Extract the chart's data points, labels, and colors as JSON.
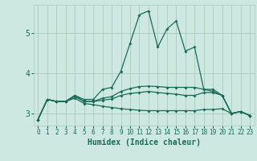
{
  "xlabel": "Humidex (Indice chaleur)",
  "background_color": "#cce8e0",
  "grid_color": "#aaccbb",
  "line_color": "#1a6b58",
  "xlim": [
    -0.5,
    23.5
  ],
  "ylim": [
    2.7,
    5.7
  ],
  "yticks": [
    3,
    4,
    5
  ],
  "xticks": [
    0,
    1,
    2,
    3,
    4,
    5,
    6,
    7,
    8,
    9,
    10,
    11,
    12,
    13,
    14,
    15,
    16,
    17,
    18,
    19,
    20,
    21,
    22,
    23
  ],
  "lines": [
    {
      "x": [
        0,
        1,
        2,
        3,
        4,
        5,
        6,
        7,
        8,
        9,
        10,
        11,
        12,
        13,
        14,
        15,
        16,
        17,
        18,
        19,
        20,
        21,
        22,
        23
      ],
      "y": [
        2.85,
        3.35,
        3.3,
        3.3,
        3.45,
        3.35,
        3.35,
        3.6,
        3.65,
        4.05,
        4.75,
        5.45,
        5.55,
        4.65,
        5.1,
        5.3,
        4.55,
        4.65,
        3.6,
        3.6,
        3.45,
        3.0,
        3.05,
        2.95
      ]
    },
    {
      "x": [
        0,
        1,
        2,
        3,
        4,
        5,
        6,
        7,
        8,
        9,
        10,
        11,
        12,
        13,
        14,
        15,
        16,
        17,
        18,
        19,
        20,
        21,
        22,
        23
      ],
      "y": [
        2.85,
        3.35,
        3.3,
        3.3,
        3.45,
        3.3,
        3.3,
        3.38,
        3.42,
        3.55,
        3.62,
        3.67,
        3.68,
        3.67,
        3.65,
        3.65,
        3.65,
        3.65,
        3.6,
        3.55,
        3.45,
        3.0,
        3.05,
        2.95
      ]
    },
    {
      "x": [
        0,
        1,
        2,
        3,
        4,
        5,
        6,
        7,
        8,
        9,
        10,
        11,
        12,
        13,
        14,
        15,
        16,
        17,
        18,
        19,
        20,
        21,
        22,
        23
      ],
      "y": [
        2.85,
        3.35,
        3.3,
        3.3,
        3.42,
        3.3,
        3.3,
        3.33,
        3.36,
        3.45,
        3.5,
        3.52,
        3.55,
        3.52,
        3.5,
        3.48,
        3.45,
        3.45,
        3.52,
        3.52,
        3.45,
        3.0,
        3.05,
        2.95
      ]
    },
    {
      "x": [
        0,
        1,
        2,
        3,
        4,
        5,
        6,
        7,
        8,
        9,
        10,
        11,
        12,
        13,
        14,
        15,
        16,
        17,
        18,
        19,
        20,
        21,
        22,
        23
      ],
      "y": [
        2.85,
        3.35,
        3.3,
        3.3,
        3.38,
        3.25,
        3.22,
        3.18,
        3.15,
        3.12,
        3.1,
        3.08,
        3.07,
        3.07,
        3.07,
        3.07,
        3.07,
        3.07,
        3.1,
        3.1,
        3.12,
        3.0,
        3.05,
        2.95
      ]
    }
  ]
}
